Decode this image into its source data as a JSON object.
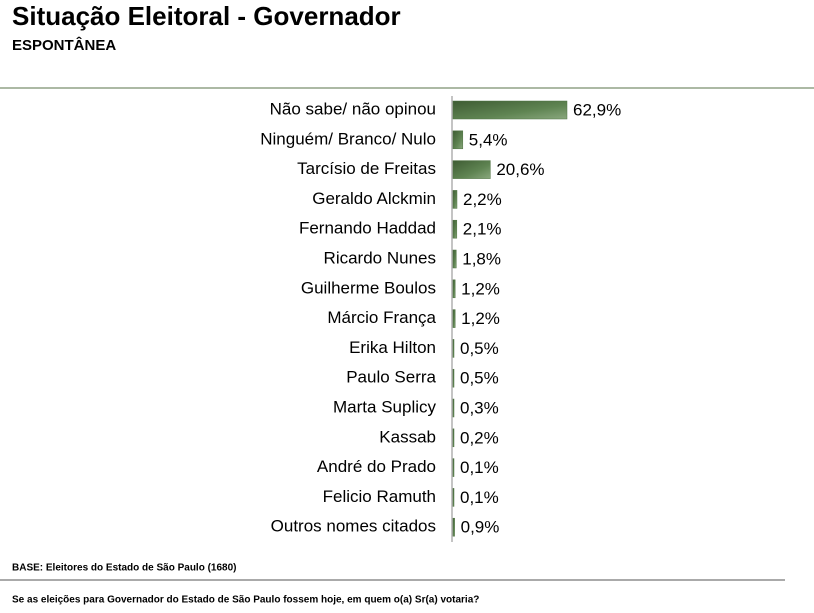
{
  "chart_data": {
    "type": "bar",
    "orientation": "horizontal",
    "title": "Situação Eleitoral - Governador",
    "subtitle": "ESPONTÂNEA",
    "categories": [
      "Não sabe/ não opinou",
      "Ninguém/ Branco/ Nulo",
      "Tarcísio de Freitas",
      "Geraldo Alckmin",
      "Fernando Haddad",
      "Ricardo Nunes",
      "Guilherme Boulos",
      "Márcio França",
      "Erika Hilton",
      "Paulo Serra",
      "Marta Suplicy",
      "Kassab",
      "André do Prado",
      "Felicio Ramuth",
      "Outros nomes citados"
    ],
    "values": [
      62.9,
      5.4,
      20.6,
      2.2,
      2.1,
      1.8,
      1.2,
      1.2,
      0.5,
      0.5,
      0.3,
      0.2,
      0.1,
      0.1,
      0.9
    ],
    "value_labels": [
      "62,9%",
      "5,4%",
      "20,6%",
      "2,2%",
      "2,1%",
      "1,8%",
      "1,2%",
      "1,2%",
      "0,5%",
      "0,5%",
      "0,3%",
      "0,2%",
      "0,1%",
      "0,1%",
      "0,9%"
    ],
    "color": "#4f7242",
    "note": "BASE: Eleitores do Estado de São Paulo (1680)",
    "question": "Se as eleições para Governador do Estado de São Paulo fossem hoje, em quem o(a) Sr(a) votaria?"
  }
}
